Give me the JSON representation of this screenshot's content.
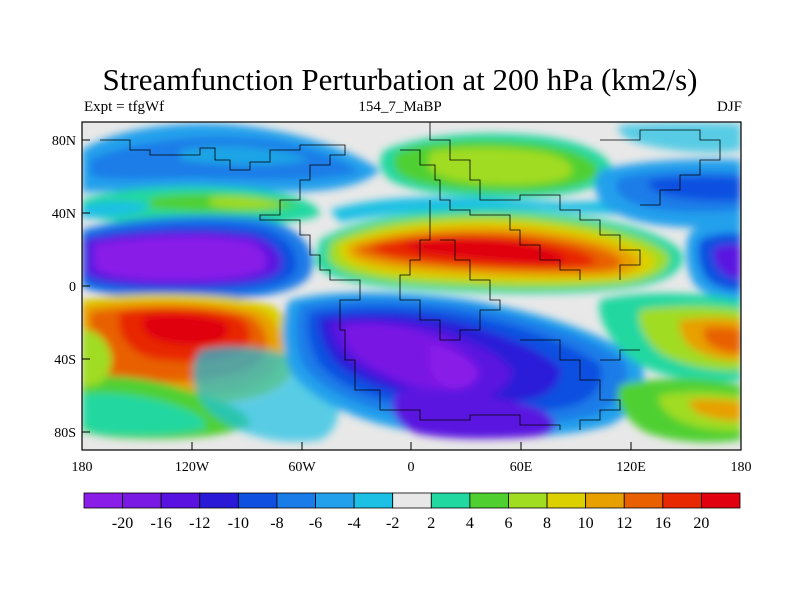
{
  "title": "Streamfunction Perturbation at 200 hPa (km2/s)",
  "left_label": "Expt = tfgWf",
  "center_label": "154_7_MaBP",
  "right_label": "DJF",
  "lat_ticks": [
    "80N",
    "40N",
    "0",
    "40S",
    "80S"
  ],
  "lon_ticks": [
    "180",
    "120W",
    "60W",
    "0",
    "60E",
    "120E",
    "180"
  ],
  "colorbar": {
    "labels": [
      "-20",
      "-16",
      "-12",
      "-10",
      "-8",
      "-6",
      "-4",
      "-2",
      "2",
      "4",
      "6",
      "8",
      "10",
      "12",
      "16",
      "20"
    ],
    "colors": [
      "#8a1ee8",
      "#7a18e4",
      "#5a12e0",
      "#2a1ad8",
      "#1050e0",
      "#1a7ce8",
      "#22a0ec",
      "#1cc0e4",
      "#e8e8e8",
      "#20d8a0",
      "#50d030",
      "#a0dc20",
      "#dcd000",
      "#e8a000",
      "#e86000",
      "#e82800",
      "#e00010"
    ]
  }
}
